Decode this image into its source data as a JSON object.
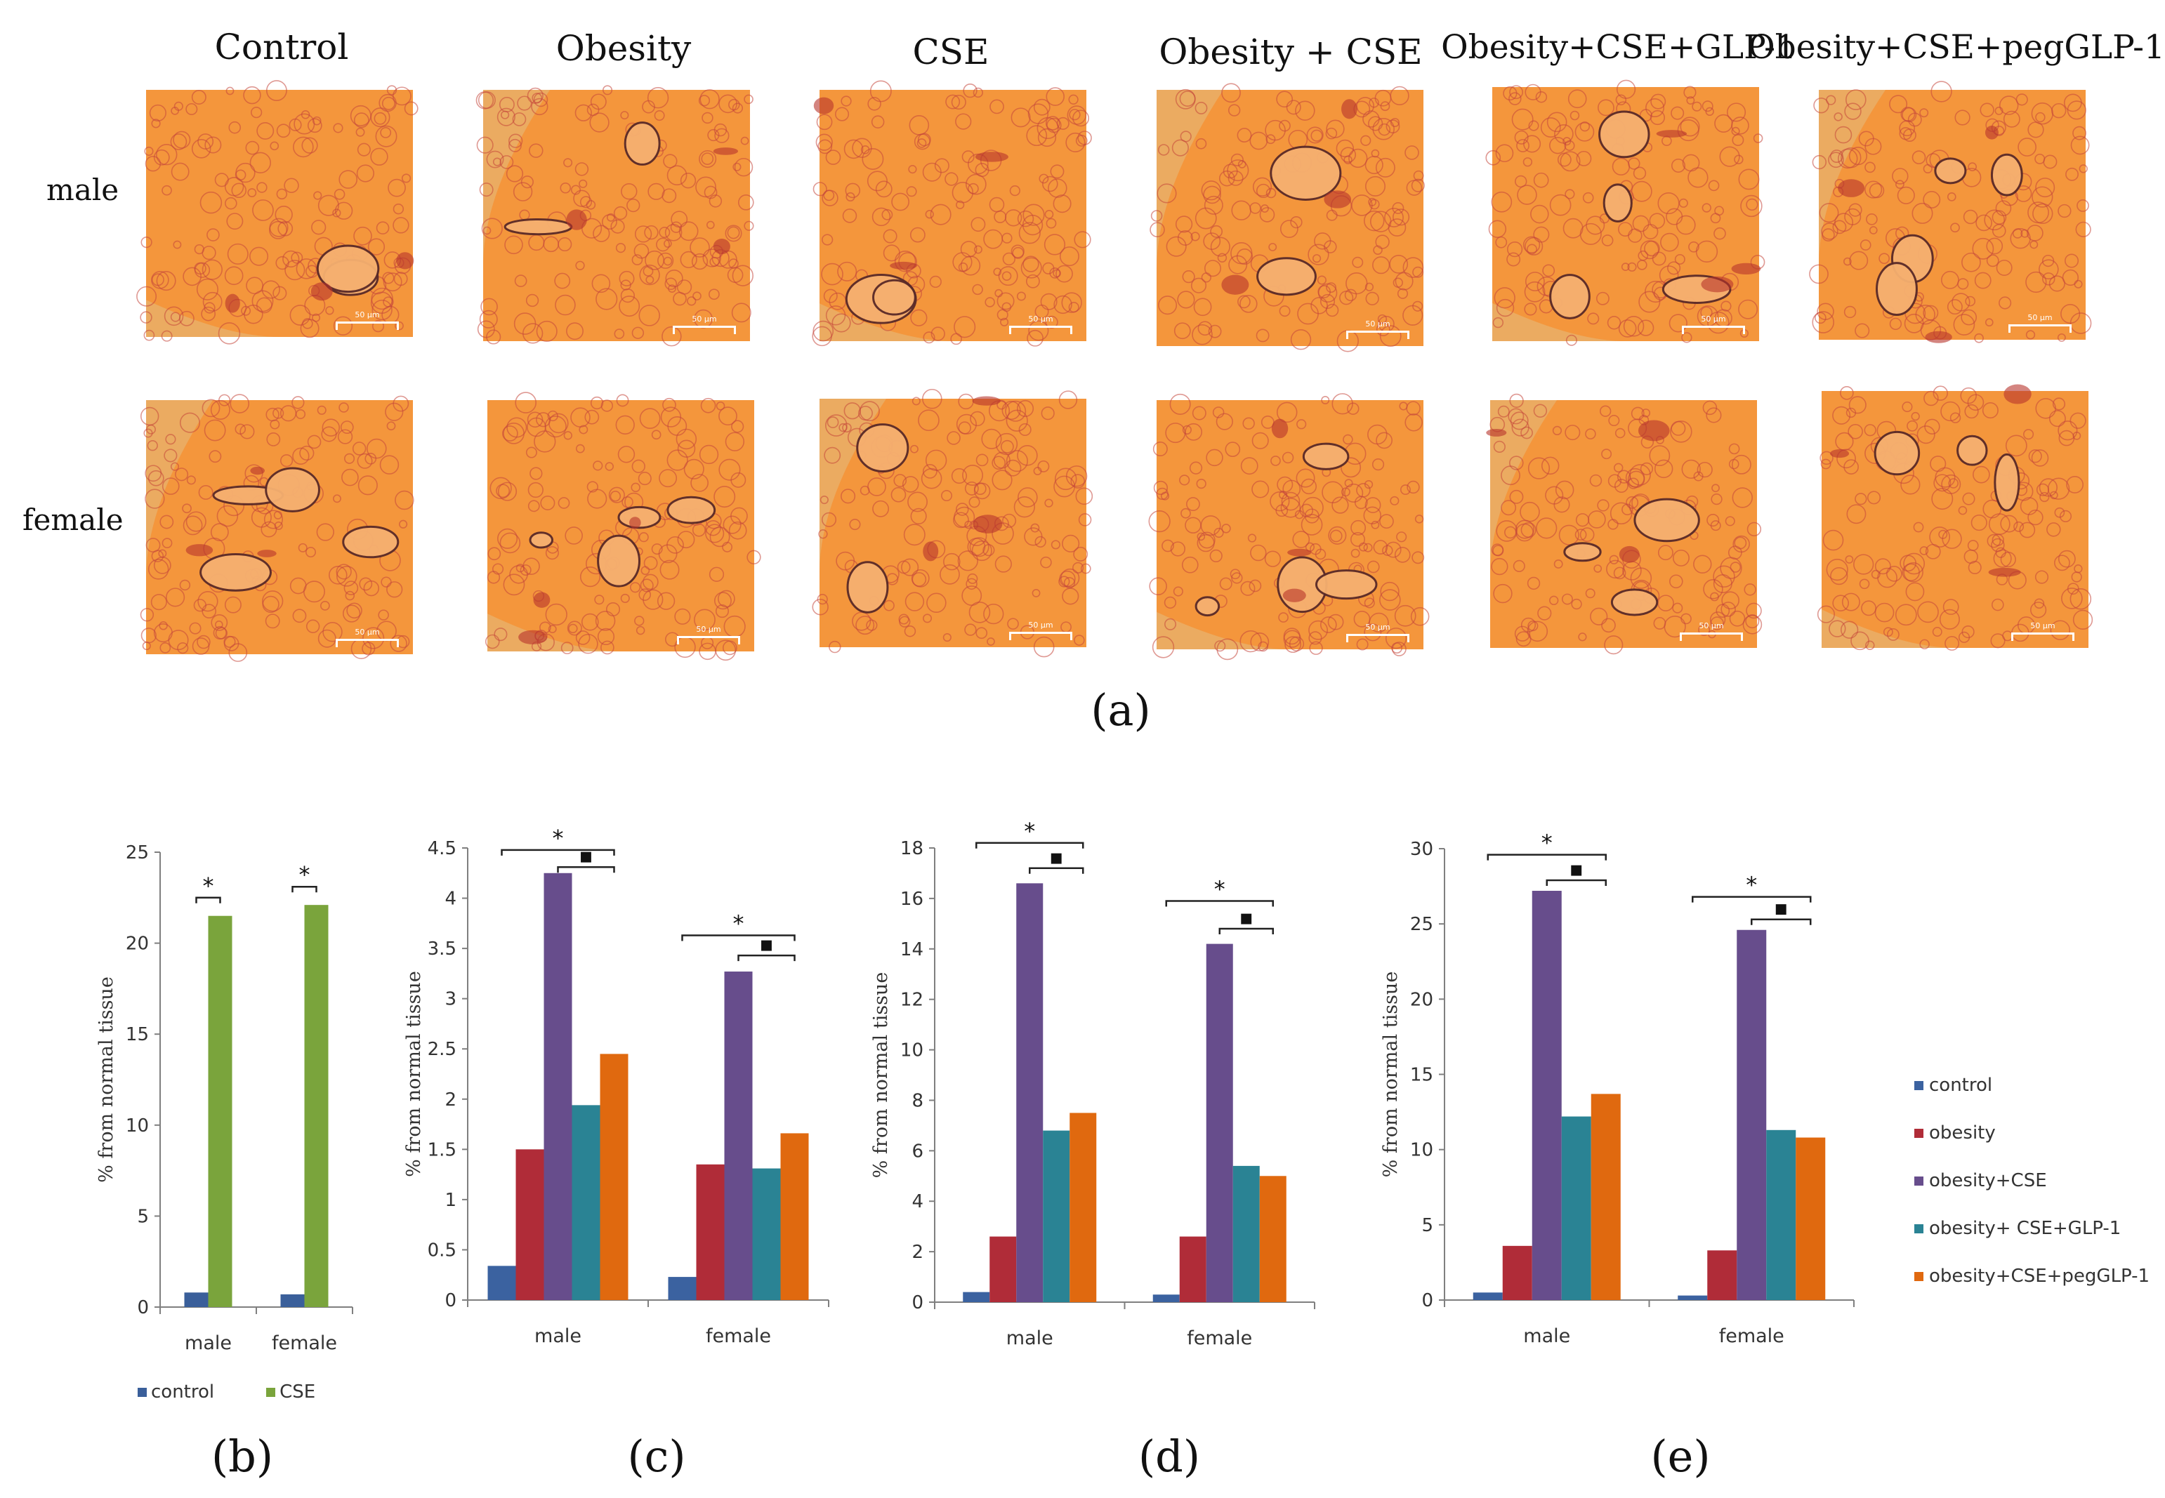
{
  "figure_a": {
    "column_labels": [
      "Control",
      "Obesity",
      "CSE",
      "Obesity + CSE",
      "Obesity+CSE+GLP-1",
      "Obesity+CSE+pegGLP-1"
    ],
    "row_labels": [
      "male",
      "female"
    ],
    "scale_bar_text": "50 µm",
    "panel_label": "(a)",
    "tissue_colors": {
      "background": "#f4963c",
      "edge": "#e8b06a",
      "stain": "#c4453a",
      "vessel": "#5a2a28"
    }
  },
  "chart_data": [
    {
      "id": "b",
      "type": "bar",
      "title": "",
      "panel_label": "(b)",
      "xlabel": "",
      "ylabel": "% from   normal   tissue",
      "categories": [
        "male",
        "female"
      ],
      "series": [
        {
          "name": "control",
          "color": "#3a5f9a",
          "values": [
            0.8,
            0.7
          ]
        },
        {
          "name": "CSE",
          "color": "#7aa43c",
          "values": [
            21.5,
            22.1
          ]
        }
      ],
      "ylim": [
        0,
        25
      ],
      "yticks": [
        "0",
        "5",
        "10",
        "15",
        "20",
        "25"
      ],
      "grid": false,
      "legend_position": "bottom",
      "significance": {
        "star": "*",
        "square": "",
        "groups": [
          {
            "category": 0,
            "star_from_series": 0,
            "star_to_series": 1,
            "star_level": 22.5
          },
          {
            "category": 1,
            "star_from_series": 0,
            "star_to_series": 1,
            "star_level": 23.1
          }
        ]
      }
    },
    {
      "id": "c",
      "type": "bar",
      "title": "",
      "panel_label": "(c)",
      "xlabel": "",
      "ylabel": "% from   normal   tissue",
      "categories": [
        "male",
        "female"
      ],
      "series": [
        {
          "name": "control",
          "color": "#3b62a0",
          "values": [
            0.34,
            0.23
          ]
        },
        {
          "name": "obesity",
          "color": "#b02c38",
          "values": [
            1.5,
            1.35
          ]
        },
        {
          "name": "obesity+CSE",
          "color": "#674d8c",
          "values": [
            4.25,
            3.27
          ]
        },
        {
          "name": "obesity+ CSE+GLP-1",
          "color": "#2a8394",
          "values": [
            1.94,
            1.31
          ]
        },
        {
          "name": "obesity+CSE+pegGLP-1",
          "color": "#e0690f",
          "values": [
            2.45,
            1.66
          ]
        }
      ],
      "ylim": [
        0,
        4.5
      ],
      "yticks": [
        "0",
        "0.5",
        "1",
        "1.5",
        "2",
        "2.5",
        "3",
        "3.5",
        "4",
        "4.5"
      ],
      "grid": false,
      "legend_position": "none",
      "significance": {
        "star": "*",
        "square": "▪",
        "groups": [
          {
            "category": 0,
            "star_level": 4.48,
            "square_level": 4.31
          },
          {
            "category": 1,
            "star_level": 3.63,
            "square_level": 3.43
          }
        ]
      }
    },
    {
      "id": "d",
      "type": "bar",
      "title": "",
      "panel_label": "(d)",
      "xlabel": "",
      "ylabel": "% from   normal   tissue",
      "categories": [
        "male",
        "female"
      ],
      "series": [
        {
          "name": "control",
          "color": "#3b62a0",
          "values": [
            0.4,
            0.3
          ]
        },
        {
          "name": "obesity",
          "color": "#b02c38",
          "values": [
            2.6,
            2.6
          ]
        },
        {
          "name": "obesity+CSE",
          "color": "#674d8c",
          "values": [
            16.6,
            14.2
          ]
        },
        {
          "name": "obesity+ CSE+GLP-1",
          "color": "#2a8394",
          "values": [
            6.8,
            5.4
          ]
        },
        {
          "name": "obesity+CSE+pegGLP-1",
          "color": "#e0690f",
          "values": [
            7.5,
            5.0
          ]
        }
      ],
      "ylim": [
        0,
        18
      ],
      "yticks": [
        "0",
        "2",
        "4",
        "6",
        "8",
        "10",
        "12",
        "14",
        "16",
        "18"
      ],
      "grid": false,
      "legend_position": "none",
      "significance": {
        "star": "*",
        "square": "▪",
        "groups": [
          {
            "category": 0,
            "star_level": 18.2,
            "square_level": 17.2
          },
          {
            "category": 1,
            "star_level": 15.9,
            "square_level": 14.8
          }
        ]
      }
    },
    {
      "id": "e",
      "type": "bar",
      "title": "",
      "panel_label": "(e)",
      "xlabel": "",
      "ylabel": "% from   normal   tissue",
      "categories": [
        "male",
        "female"
      ],
      "series": [
        {
          "name": "control",
          "color": "#3b62a0",
          "values": [
            0.5,
            0.3
          ]
        },
        {
          "name": "obesity",
          "color": "#b02c38",
          "values": [
            3.6,
            3.3
          ]
        },
        {
          "name": "obesity+CSE",
          "color": "#674d8c",
          "values": [
            27.2,
            24.6
          ]
        },
        {
          "name": "obesity+ CSE+GLP-1",
          "color": "#2a8394",
          "values": [
            12.2,
            11.3
          ]
        },
        {
          "name": "obesity+CSE+pegGLP-1",
          "color": "#e0690f",
          "values": [
            13.7,
            10.8
          ]
        }
      ],
      "ylim": [
        0,
        30
      ],
      "yticks": [
        "0",
        "5",
        "10",
        "15",
        "20",
        "25",
        "30"
      ],
      "grid": false,
      "legend_position": "right",
      "significance": {
        "star": "*",
        "square": "▪",
        "groups": [
          {
            "category": 0,
            "star_level": 29.6,
            "square_level": 27.9
          },
          {
            "category": 1,
            "star_level": 26.8,
            "square_level": 25.3
          }
        ]
      }
    }
  ]
}
